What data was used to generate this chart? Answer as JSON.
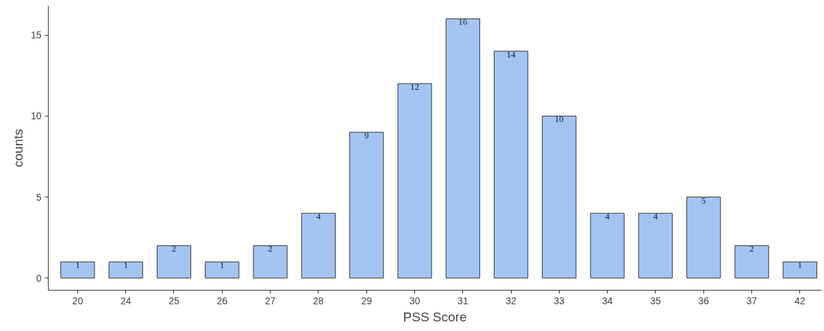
{
  "chart_data": {
    "type": "bar",
    "xlabel": "PSS Score",
    "ylabel": "counts",
    "categories": [
      "20",
      "24",
      "25",
      "26",
      "27",
      "28",
      "29",
      "30",
      "31",
      "32",
      "33",
      "34",
      "35",
      "36",
      "37",
      "42"
    ],
    "values": [
      1,
      1,
      2,
      1,
      2,
      4,
      9,
      12,
      16,
      14,
      10,
      4,
      4,
      5,
      2,
      1
    ],
    "color": "#a4c4f2",
    "data_labels": true,
    "grid": false,
    "ylim": [
      -0.75,
      16.8
    ],
    "yticks": [
      0,
      5,
      10,
      15
    ]
  }
}
